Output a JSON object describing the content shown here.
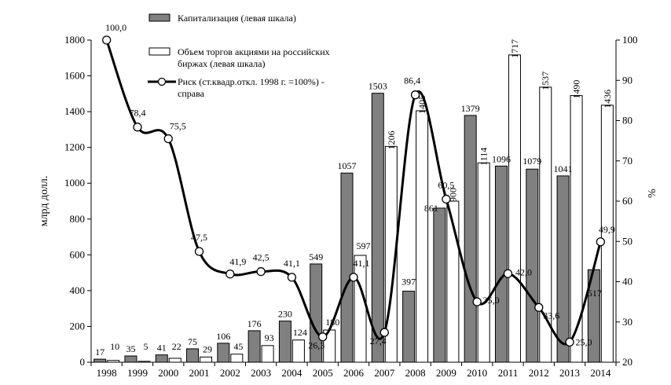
{
  "chart_data": {
    "type": "bar",
    "categories": [
      "1998",
      "1999",
      "2000",
      "2001",
      "2002",
      "2003",
      "2004",
      "2005",
      "2006",
      "2007",
      "2008",
      "2009",
      "2010",
      "2011",
      "2012",
      "2013",
      "2014"
    ],
    "ylabel_left": "млрд долл.",
    "ylabel_right": "%",
    "ylim_left": [
      0,
      1800
    ],
    "ylim_right": [
      20,
      100
    ],
    "yticks_left": [
      "0",
      "200",
      "400",
      "600",
      "800",
      "1000",
      "1200",
      "1400",
      "1600",
      "1800"
    ],
    "yticks_right": [
      "20",
      "30",
      "40",
      "50",
      "60",
      "70",
      "80",
      "90",
      "100"
    ],
    "series": [
      {
        "name": "Капитализация (левая шкала)",
        "axis": "left",
        "kind": "bar",
        "color": "#808080",
        "values": [
          17,
          35,
          41,
          75,
          106,
          176,
          230,
          549,
          1057,
          1503,
          397,
          861,
          1379,
          1096,
          1079,
          1041,
          517
        ],
        "labels": [
          "17",
          "35",
          "41",
          "75",
          "106",
          "176",
          "230",
          "549",
          "1057",
          "1503",
          "397",
          "861",
          "1379",
          "1096",
          "1079",
          "1041",
          "517"
        ]
      },
      {
        "name": "Объем торгов акциями на российских биржах (левая шкала)",
        "axis": "left",
        "kind": "bar",
        "color": "#ffffff",
        "values": [
          10,
          5,
          22,
          29,
          45,
          93,
          124,
          180,
          597,
          1206,
          1405,
          900,
          1114,
          1717,
          1537,
          1490,
          1436
        ],
        "labels": [
          "10",
          "5",
          "22",
          "29",
          "45",
          "93",
          "124",
          "180",
          "597",
          "1206",
          "1405",
          "900",
          "1114",
          "1717",
          "1537",
          "1490",
          "1436"
        ]
      },
      {
        "name": "Риск (ст.квадр.откл. 1998 г. =100%) - справа",
        "axis": "right",
        "kind": "line",
        "color": "#000000",
        "values": [
          100.0,
          78.4,
          75.5,
          47.5,
          41.9,
          42.5,
          41.1,
          26.3,
          41.1,
          27.4,
          86.4,
          60.5,
          35.0,
          42.0,
          33.6,
          25.0,
          49.9
        ],
        "labels": [
          "100,0",
          "78,4",
          "75,5",
          "47,5",
          "41,9",
          "42,5",
          "41,1",
          "26,3",
          "41,1",
          "27,4",
          "86,4",
          "60,5",
          "35,0",
          "42,0",
          "33,6",
          "25,0",
          "49,9"
        ]
      }
    ],
    "legend": {
      "placement": "top-left",
      "items": [
        "Капитализация (левая шкала)",
        "Объем торгов акциями на российских биржах (левая шкала)",
        "Риск (ст.квадр.откл. 1998 г. =100%) - справа"
      ]
    },
    "grid": false
  }
}
